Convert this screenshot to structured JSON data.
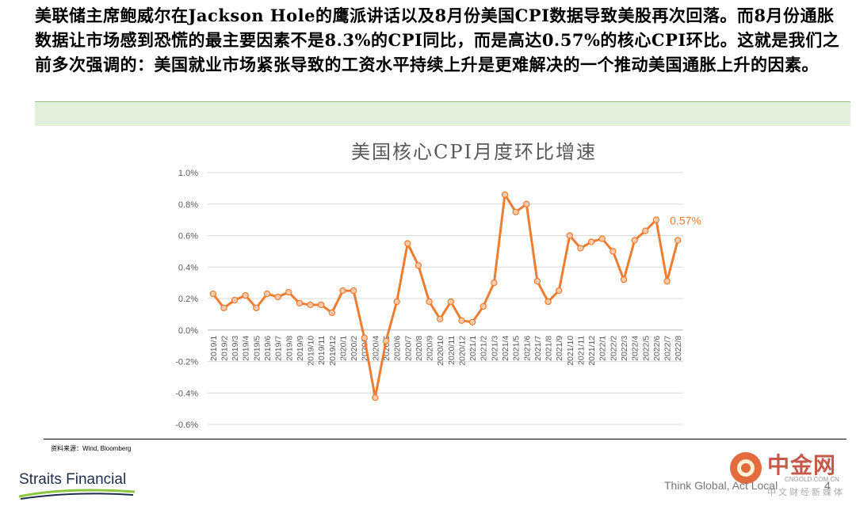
{
  "headline": "美联储主席鲍威尔在Jackson Hole的鹰派讲话以及8月份美国CPI数据导致美股再次回落。而8月份通胀数据让市场感到恐慌的最主要因素不是8.3%的CPI同比，而是高达0.57%的核心CPI环比。这就是我们之前多次强调的：美国就业市场紧张导致的工资水平持续上升是更难解决的一个推动美国通胀上升的因素。",
  "source": "资料来源：Wind, Bloomberg",
  "company": "Straits Financial",
  "slogan": "Think Global, Act Local",
  "page_number": "4",
  "watermark": {
    "name": "中金网",
    "url": "CNGOLD.COM.CN",
    "sub": "中文财经新媒体"
  },
  "colors": {
    "line": "#ed7d31",
    "marker_fill": "#f8cbad",
    "axis_text": "#595959",
    "grid": "#d9d9d9",
    "green_band": "#e2efda"
  },
  "chart_data": {
    "type": "line",
    "title": "美国核心CPI月度环比增速",
    "ylim": [
      -0.6,
      1.0
    ],
    "yticks": [
      -0.6,
      -0.4,
      -0.2,
      0.0,
      0.2,
      0.4,
      0.6,
      0.8,
      1.0
    ],
    "ytick_labels": [
      "-0.6%",
      "-0.4%",
      "-0.2%",
      "0.0%",
      "0.2%",
      "0.4%",
      "0.6%",
      "0.8%",
      "1.0%"
    ],
    "grid": true,
    "categories": [
      "2019/1",
      "2019/2",
      "2019/3",
      "2019/4",
      "2019/5",
      "2019/6",
      "2019/7",
      "2019/8",
      "2019/9",
      "2019/10",
      "2019/11",
      "2019/12",
      "2020/1",
      "2020/2",
      "2020/3",
      "2020/4",
      "2020/5",
      "2020/6",
      "2020/7",
      "2020/8",
      "2020/9",
      "2020/10",
      "2020/11",
      "2020/12",
      "2021/1",
      "2021/2",
      "2021/3",
      "2021/4",
      "2021/5",
      "2021/6",
      "2021/7",
      "2021/8",
      "2021/9",
      "2021/10",
      "2021/11",
      "2021/12",
      "2022/1",
      "2022/2",
      "2022/3",
      "2022/4",
      "2022/5",
      "2022/6",
      "2022/7",
      "2022/8"
    ],
    "values": [
      0.23,
      0.14,
      0.19,
      0.22,
      0.14,
      0.23,
      0.21,
      0.24,
      0.17,
      0.16,
      0.16,
      0.11,
      0.25,
      0.25,
      -0.05,
      -0.43,
      -0.07,
      0.18,
      0.55,
      0.41,
      0.18,
      0.07,
      0.18,
      0.06,
      0.05,
      0.15,
      0.3,
      0.86,
      0.75,
      0.8,
      0.31,
      0.18,
      0.25,
      0.6,
      0.52,
      0.56,
      0.58,
      0.5,
      0.32,
      0.57,
      0.63,
      0.7,
      0.31,
      0.57
    ],
    "annotation": {
      "label": "0.57%",
      "category": "2022/8",
      "value": 0.57
    }
  }
}
